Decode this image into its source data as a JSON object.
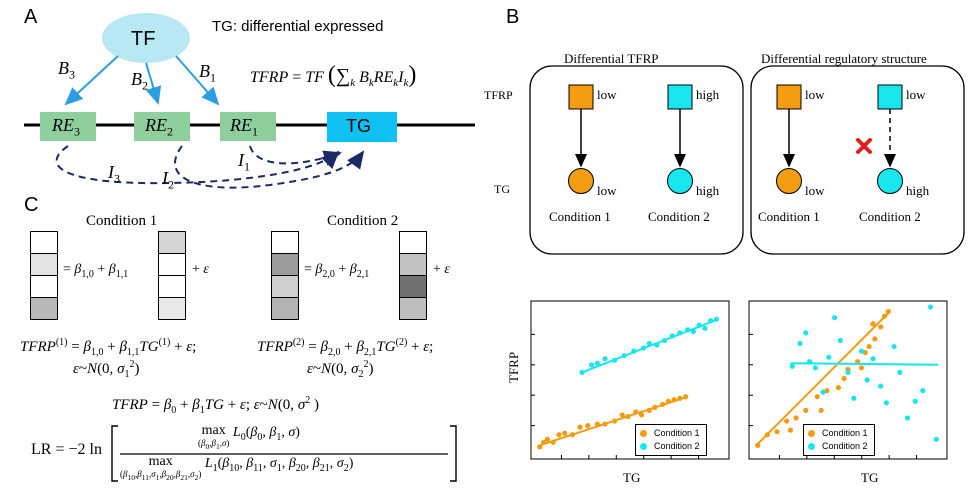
{
  "panels": {
    "a": "A",
    "b": "B",
    "c": "C"
  },
  "panel_a": {
    "tf_label": "TF",
    "tg_note": "TG: differential expressed",
    "b_labels": [
      "B3",
      "B2",
      "B1"
    ],
    "re_boxes": [
      "RE3",
      "RE2",
      "RE1"
    ],
    "tg_box": "TG",
    "i_labels": [
      "I3",
      "I2",
      "I1"
    ],
    "formula_lhs": "TFRP",
    "formula_rhs": "= TF (∑k BkREkIk)"
  },
  "panel_b": {
    "box1_title": "Differential TFRP",
    "box2_title": "Differential regulatory structure",
    "row_tfrp": "TFRP",
    "row_tg": "TG",
    "box1": {
      "sq1_label": "low",
      "sq2_label": "high",
      "ci1_label": "low",
      "ci2_label": "high",
      "cond1": "Condition 1",
      "cond2": "Condition 2"
    },
    "box2": {
      "sq1_label": "low",
      "sq2_label": "low",
      "ci1_label": "low",
      "ci2_label": "high",
      "cond1": "Condition 1",
      "cond2": "Condition 2"
    },
    "colors": {
      "orange": "#f39c12",
      "cyan": "#17e6ee",
      "red": "#e0201e",
      "blue_arrow": "#2a9ee0",
      "green_box": "#8fcf9e",
      "tg_box": "#0fc0f2",
      "tf_ellipse": "#b8e8f4"
    }
  },
  "panel_c": {
    "cond1_title": "Condition 1",
    "cond2_title": "Condition 2",
    "cond1_eq": "= β1,0 + β1,1 + ε",
    "cond2_eq": "= β2,0 + β2,1 + ε",
    "model1": "TFRP(1) = β1,0 + β1,1TG(1) + ε;",
    "model1_noise": "ε~N(0, σ1²)",
    "model2": "TFRP(2) = β2,0 + β2,1TG(2) + ε;",
    "model2_noise": "ε~N(0, σ2²)",
    "pooled": "TFRP = β0 + β1TG + ε; ε~N(0, σ² )",
    "lr_lhs": "LR = −2 ln",
    "lr_num_max": "max",
    "lr_num_sub": "(β0,β1,σ)",
    "lr_num_body": "L0(β0, β1, σ)",
    "lr_den_max": "max",
    "lr_den_sub": "(β10,β11,σ1,β20,β21,σ2)",
    "lr_den_body": "L1(β10, β11, σ1, β20, β21, σ2)",
    "matrix_shades": {
      "cond1_left": [
        "#ffffff",
        "#e3e3e3",
        "#ffffff",
        "#b8b8b8"
      ],
      "cond1_right": [
        "#d6d6d6",
        "#ffffff",
        "#ffffff",
        "#e8e8e8"
      ],
      "cond2_left": [
        "#ffffff",
        "#9c9c9c",
        "#cfcfcf",
        "#b3b3b3"
      ],
      "cond2_right": [
        "#ffffff",
        "#c2c2c2",
        "#707070",
        "#bdbdbd"
      ]
    }
  },
  "plots": {
    "ylabel": "TFRP",
    "xlabel1": "TG",
    "xlabel2": "TG",
    "legend1": [
      "Condition 1",
      "Condition 2"
    ],
    "legend2": [
      "Condition 1",
      "Condition 2"
    ]
  },
  "chart_data": [
    {
      "type": "scatter",
      "title": "",
      "xlabel": "TG",
      "ylabel": "TFRP",
      "xlim": [
        0,
        10
      ],
      "ylim": [
        0,
        10
      ],
      "series": [
        {
          "name": "Condition 1",
          "color": "#f39c12",
          "points": [
            [
              0.3,
              0.6
            ],
            [
              0.5,
              0.9
            ],
            [
              0.7,
              1.1
            ],
            [
              1.0,
              0.9
            ],
            [
              1.3,
              1.4
            ],
            [
              1.6,
              1.5
            ],
            [
              2.0,
              1.4
            ],
            [
              2.4,
              1.9
            ],
            [
              2.8,
              2.0
            ],
            [
              3.3,
              2.1
            ],
            [
              3.7,
              2.1
            ],
            [
              4.2,
              2.3
            ],
            [
              4.6,
              2.7
            ],
            [
              4.9,
              2.6
            ],
            [
              5.3,
              2.9
            ],
            [
              5.6,
              2.7
            ],
            [
              6.0,
              3.0
            ],
            [
              6.3,
              3.2
            ],
            [
              6.7,
              3.4
            ],
            [
              7.0,
              3.6
            ],
            [
              7.3,
              3.7
            ],
            [
              7.6,
              3.8
            ],
            [
              7.9,
              3.9
            ]
          ],
          "fit": [
            [
              0.3,
              0.7
            ],
            [
              8.0,
              3.9
            ]
          ]
        },
        {
          "name": "Condition 2",
          "color": "#17e6ee",
          "points": [
            [
              2.5,
              5.5
            ],
            [
              3.0,
              6.0
            ],
            [
              3.3,
              6.1
            ],
            [
              3.7,
              6.4
            ],
            [
              4.2,
              6.3
            ],
            [
              4.7,
              6.6
            ],
            [
              5.2,
              6.9
            ],
            [
              5.7,
              7.1
            ],
            [
              6.0,
              7.4
            ],
            [
              6.4,
              7.3
            ],
            [
              6.8,
              7.6
            ],
            [
              7.2,
              7.9
            ],
            [
              7.6,
              8.1
            ],
            [
              8.0,
              8.3
            ],
            [
              8.3,
              8.2
            ],
            [
              8.6,
              8.6
            ],
            [
              8.9,
              8.4
            ],
            [
              9.2,
              8.9
            ],
            [
              9.5,
              9.0
            ]
          ],
          "fit": [
            [
              2.5,
              5.5
            ],
            [
              9.6,
              9.0
            ]
          ]
        }
      ]
    },
    {
      "type": "scatter",
      "title": "",
      "xlabel": "TG",
      "ylabel": "",
      "xlim": [
        0,
        10
      ],
      "ylim": [
        0,
        10
      ],
      "series": [
        {
          "name": "Condition 1",
          "color": "#f39c12",
          "points": [
            [
              0.3,
              0.7
            ],
            [
              0.8,
              1.4
            ],
            [
              1.3,
              1.6
            ],
            [
              1.8,
              2.3
            ],
            [
              2.3,
              2.5
            ],
            [
              2.8,
              3.0
            ],
            [
              3.4,
              3.9
            ],
            [
              3.9,
              4.3
            ],
            [
              4.5,
              4.5
            ],
            [
              5.0,
              5.7
            ],
            [
              5.5,
              6.2
            ],
            [
              5.9,
              6.8
            ],
            [
              6.1,
              7.2
            ],
            [
              6.4,
              7.7
            ],
            [
              6.7,
              8.5
            ],
            [
              6.9,
              9.2
            ],
            [
              7.1,
              9.5
            ],
            [
              6.3,
              8.7
            ],
            [
              5.7,
              5.8
            ],
            [
              4.8,
              5.1
            ],
            [
              3.6,
              3.0
            ],
            [
              2.0,
              1.7
            ]
          ],
          "fit": [
            [
              0.3,
              0.8
            ],
            [
              7.1,
              9.4
            ]
          ]
        },
        {
          "name": "Condition 2",
          "color": "#17e6ee",
          "points": [
            [
              2.1,
              5.9
            ],
            [
              2.5,
              7.4
            ],
            [
              3.0,
              6.2
            ],
            [
              3.3,
              5.8
            ],
            [
              3.7,
              4.2
            ],
            [
              4.0,
              6.5
            ],
            [
              4.3,
              9.1
            ],
            [
              4.6,
              7.6
            ],
            [
              5.0,
              5.5
            ],
            [
              5.3,
              3.8
            ],
            [
              5.7,
              6.9
            ],
            [
              6.0,
              5.0
            ],
            [
              6.3,
              6.4
            ],
            [
              6.7,
              4.6
            ],
            [
              7.0,
              3.5
            ],
            [
              7.4,
              7.2
            ],
            [
              7.7,
              5.5
            ],
            [
              8.1,
              2.5
            ],
            [
              8.5,
              3.6
            ],
            [
              8.9,
              4.3
            ],
            [
              9.3,
              9.8
            ],
            [
              9.6,
              1.1
            ],
            [
              2.8,
              8.1
            ]
          ],
          "fit": [
            [
              2.0,
              6.1
            ],
            [
              9.7,
              6.0
            ]
          ]
        }
      ]
    }
  ]
}
